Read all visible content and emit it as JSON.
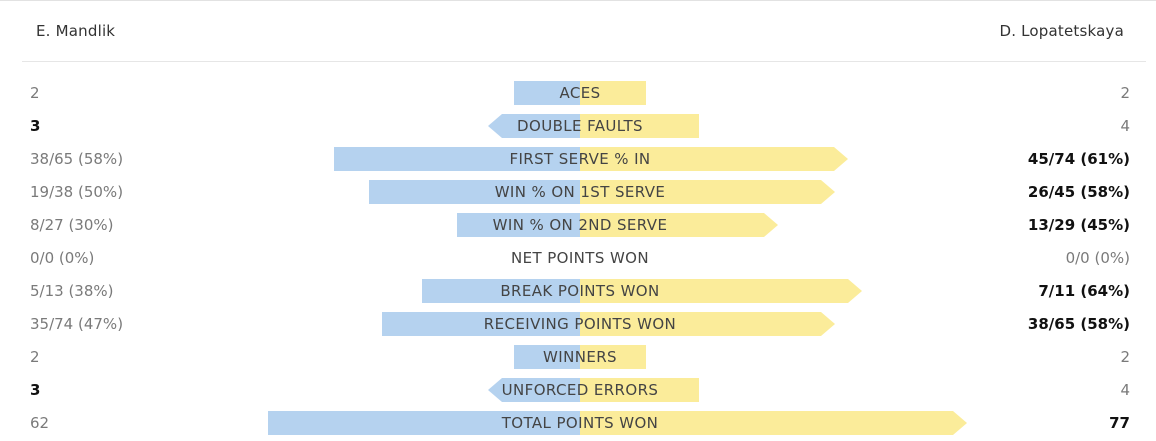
{
  "players": {
    "left": "E. Mandlik",
    "right": "D. Lopatetskaya"
  },
  "colors": {
    "left_bar": "#b5d2ef",
    "right_bar": "#fbec9a",
    "winner_text": "#111111",
    "normal_text": "#7a7a7a"
  },
  "stats": [
    {
      "label": "ACES",
      "left": "2",
      "right": "2",
      "left_share": 0.15,
      "right_share": 0.15,
      "left_winner": false,
      "right_winner": false
    },
    {
      "label": "DOUBLE FAULTS",
      "left": "3",
      "right": "4",
      "left_share": 0.21,
      "right_share": 0.27,
      "left_winner": true,
      "right_winner": false,
      "left_arrow": true
    },
    {
      "label": "FIRST SERVE % IN",
      "left": "38/65 (58%)",
      "right": "45/74 (61%)",
      "left_share": 0.56,
      "right_share": 0.61,
      "left_winner": false,
      "right_winner": true,
      "right_arrow": true
    },
    {
      "label": "WIN % ON 1ST SERVE",
      "left": "19/38 (50%)",
      "right": "26/45 (58%)",
      "left_share": 0.48,
      "right_share": 0.58,
      "left_winner": false,
      "right_winner": true,
      "right_arrow": true
    },
    {
      "label": "WIN % ON 2ND SERVE",
      "left": "8/27 (30%)",
      "right": "13/29 (45%)",
      "left_share": 0.28,
      "right_share": 0.45,
      "left_winner": false,
      "right_winner": true,
      "right_arrow": true
    },
    {
      "label": "NET POINTS WON",
      "left": "0/0 (0%)",
      "right": "0/0 (0%)",
      "left_share": 0,
      "right_share": 0,
      "left_winner": false,
      "right_winner": false
    },
    {
      "label": "BREAK POINTS WON",
      "left": "5/13 (38%)",
      "right": "7/11 (64%)",
      "left_share": 0.36,
      "right_share": 0.64,
      "left_winner": false,
      "right_winner": true,
      "right_arrow": true
    },
    {
      "label": "RECEIVING POINTS WON",
      "left": "35/74 (47%)",
      "right": "38/65 (58%)",
      "left_share": 0.45,
      "right_share": 0.58,
      "left_winner": false,
      "right_winner": true,
      "right_arrow": true
    },
    {
      "label": "WINNERS",
      "left": "2",
      "right": "2",
      "left_share": 0.15,
      "right_share": 0.15,
      "left_winner": false,
      "right_winner": false
    },
    {
      "label": "UNFORCED ERRORS",
      "left": "3",
      "right": "4",
      "left_share": 0.21,
      "right_share": 0.27,
      "left_winner": true,
      "right_winner": false,
      "left_arrow": true
    },
    {
      "label": "TOTAL POINTS WON",
      "left": "62",
      "right": "77",
      "left_share": 0.71,
      "right_share": 0.88,
      "left_winner": false,
      "right_winner": true,
      "right_arrow": true
    }
  ]
}
